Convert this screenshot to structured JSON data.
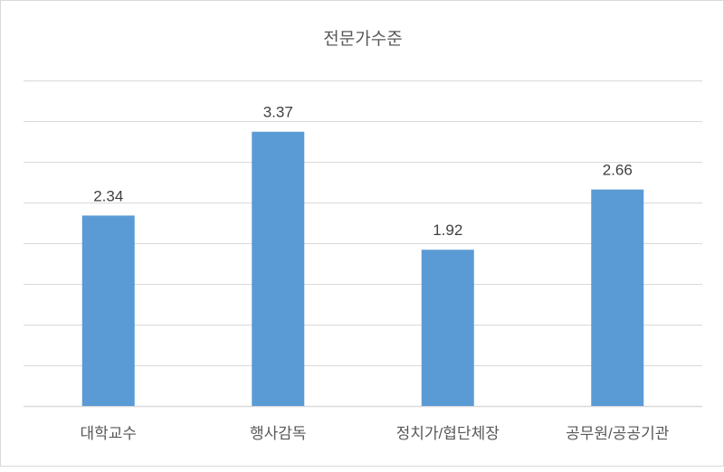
{
  "chart_data": {
    "type": "bar",
    "title": "전문가수준",
    "categories": [
      "대학교수",
      "행사감독",
      "정치가/협단체장",
      "공무원/공공기관"
    ],
    "values": [
      2.34,
      3.37,
      1.92,
      2.66
    ],
    "data_labels": [
      "2.34",
      "3.37",
      "1.92",
      "2.66"
    ],
    "xlabel": "",
    "ylabel": "",
    "ylim": [
      0,
      4
    ],
    "grid_step": 0.5,
    "grid": true,
    "y_tick_labels_visible": false,
    "legend": "none",
    "bar_color": "#5b9bd5",
    "grid_color": "#d9d9d9"
  }
}
